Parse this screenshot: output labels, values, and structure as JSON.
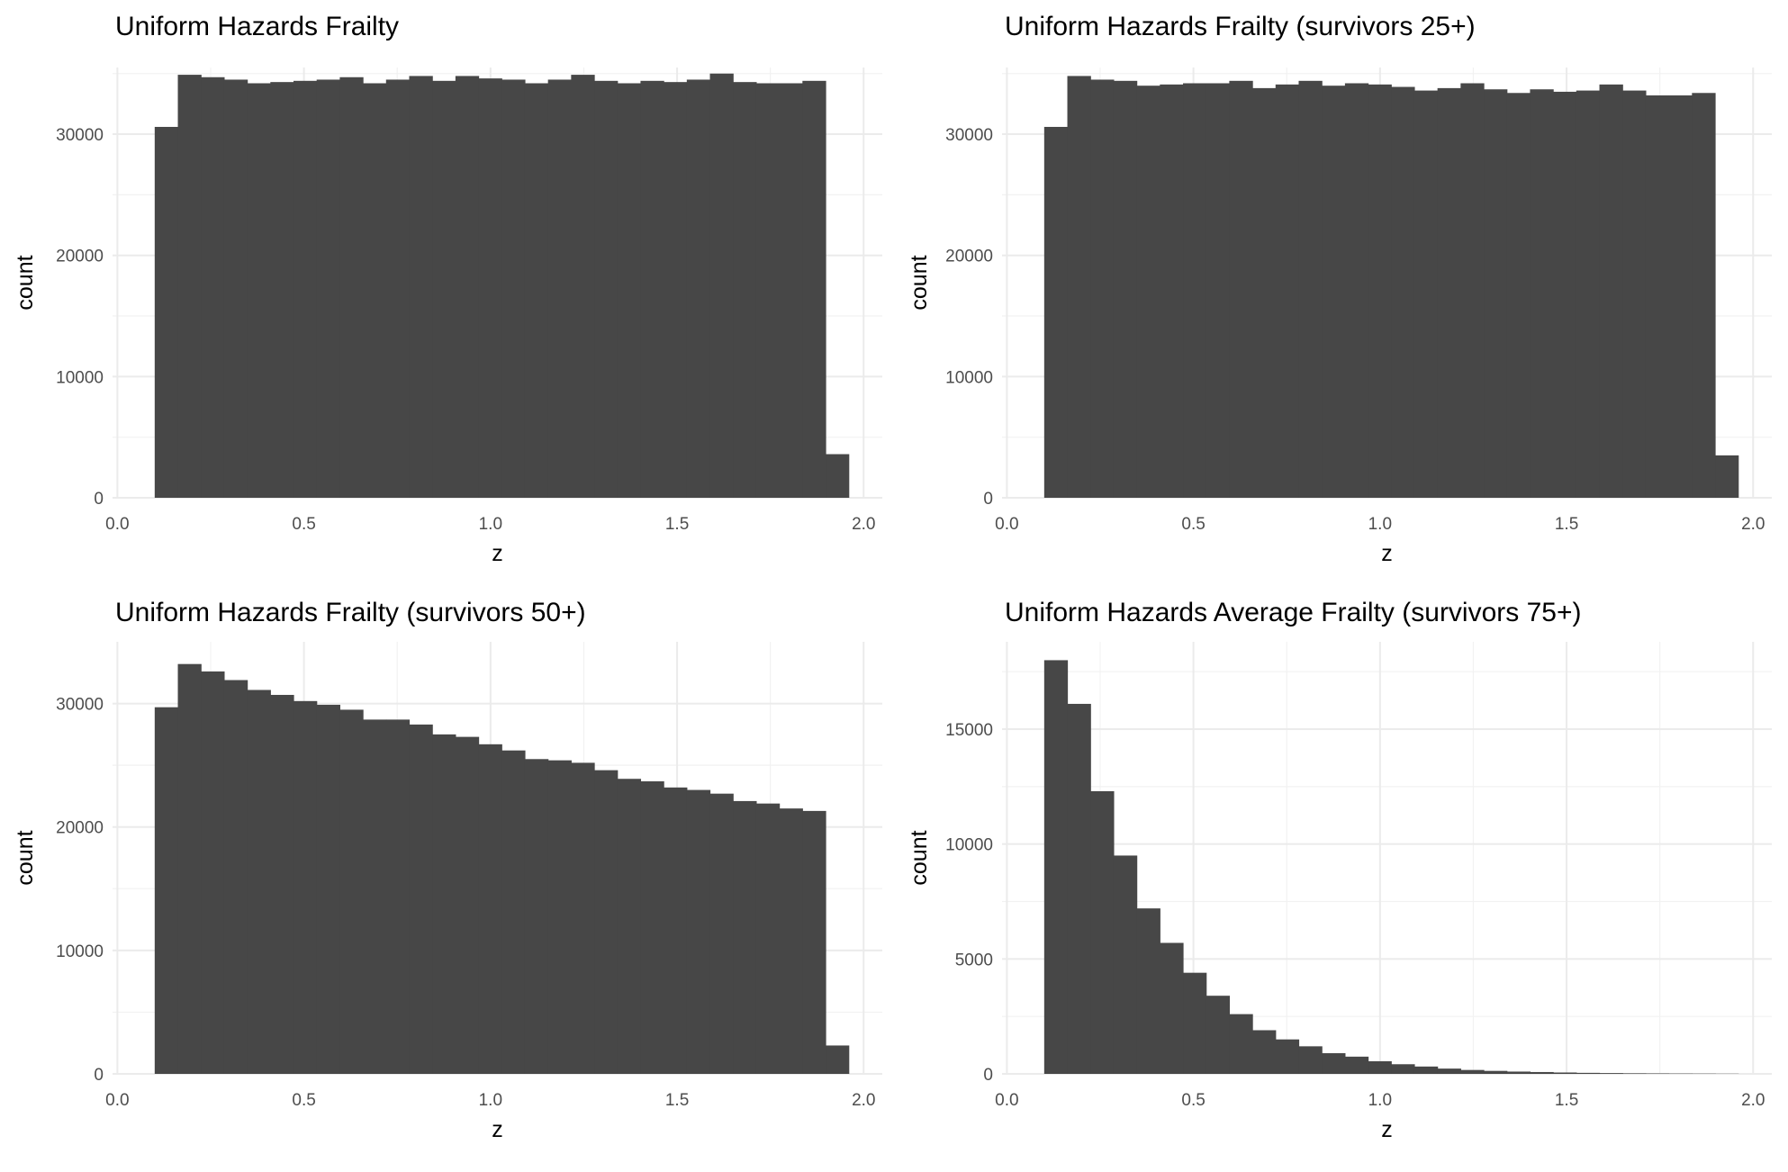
{
  "chart_data": [
    {
      "type": "bar",
      "title": "Uniform Hazards Frailty",
      "xlabel": "z",
      "ylabel": "count",
      "xlim": [
        0,
        2
      ],
      "ylim": [
        0,
        35000
      ],
      "x_ticks": [
        "0.0",
        "0.5",
        "1.0",
        "1.5",
        "2.0"
      ],
      "y_ticks": [
        "0",
        "10000",
        "20000",
        "30000"
      ],
      "bin_start": 0.1,
      "bin_width": 0.062,
      "values": [
        30600,
        34900,
        34700,
        34500,
        34200,
        34300,
        34400,
        34500,
        34700,
        34200,
        34500,
        34800,
        34400,
        34800,
        34600,
        34500,
        34200,
        34500,
        34900,
        34400,
        34200,
        34400,
        34300,
        34500,
        35000,
        34300,
        34200,
        34200,
        34400,
        3600
      ],
      "grid": true
    },
    {
      "type": "bar",
      "title": "Uniform Hazards Frailty (survivors 25+)",
      "xlabel": "z",
      "ylabel": "count",
      "xlim": [
        0,
        2
      ],
      "ylim": [
        0,
        35000
      ],
      "x_ticks": [
        "0.0",
        "0.5",
        "1.0",
        "1.5",
        "2.0"
      ],
      "y_ticks": [
        "0",
        "10000",
        "20000",
        "30000"
      ],
      "bin_start": 0.1,
      "bin_width": 0.062,
      "values": [
        30600,
        34800,
        34500,
        34400,
        34000,
        34100,
        34200,
        34200,
        34400,
        33800,
        34100,
        34400,
        34000,
        34200,
        34100,
        33900,
        33600,
        33800,
        34200,
        33700,
        33400,
        33700,
        33500,
        33600,
        34100,
        33600,
        33200,
        33200,
        33400,
        3500
      ],
      "grid": true
    },
    {
      "type": "bar",
      "title": "Uniform Hazards Frailty (survivors 50+)",
      "xlabel": "z",
      "ylabel": "count",
      "xlim": [
        0,
        2
      ],
      "ylim": [
        0,
        35000
      ],
      "x_ticks": [
        "0.0",
        "0.5",
        "1.0",
        "1.5",
        "2.0"
      ],
      "y_ticks": [
        "0",
        "10000",
        "20000",
        "30000"
      ],
      "bin_start": 0.1,
      "bin_width": 0.062,
      "values": [
        29700,
        33200,
        32600,
        31900,
        31100,
        30700,
        30200,
        29900,
        29500,
        28700,
        28700,
        28300,
        27500,
        27300,
        26700,
        26200,
        25500,
        25400,
        25200,
        24600,
        23900,
        23700,
        23200,
        23000,
        22700,
        22100,
        21900,
        21500,
        21300,
        2300
      ],
      "grid": true
    },
    {
      "type": "bar",
      "title": "Uniform Hazards Average Frailty (survivors 75+)",
      "xlabel": "z",
      "ylabel": "count",
      "xlim": [
        0,
        2
      ],
      "ylim": [
        0,
        18000
      ],
      "x_ticks": [
        "0.0",
        "0.5",
        "1.0",
        "1.5",
        "2.0"
      ],
      "y_ticks": [
        "0",
        "5000",
        "10000",
        "15000"
      ],
      "bin_start": 0.1,
      "bin_width": 0.062,
      "values": [
        18000,
        16100,
        12300,
        9500,
        7200,
        5700,
        4400,
        3400,
        2600,
        1900,
        1500,
        1200,
        900,
        750,
        550,
        420,
        320,
        230,
        170,
        130,
        100,
        80,
        60,
        45,
        35,
        25,
        20,
        15,
        12,
        8
      ],
      "grid": true
    }
  ]
}
